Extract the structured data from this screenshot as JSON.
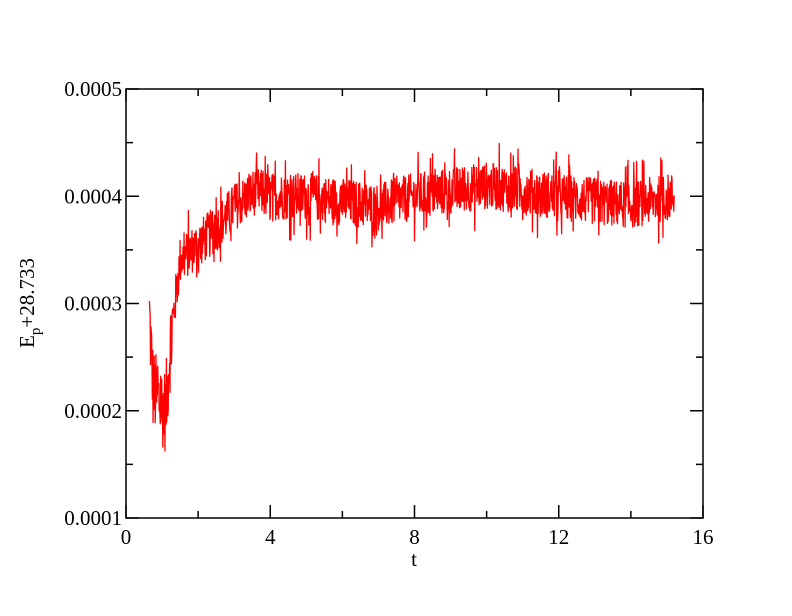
{
  "chart_data": {
    "type": "line",
    "title": "",
    "xlabel": "t",
    "ylabel_main": "E",
    "ylabel_sub": "p",
    "ylabel_suffix": "+28.733",
    "xlim": [
      0,
      16
    ],
    "ylim": [
      0.0001,
      0.0005
    ],
    "x_ticks": [
      {
        "value": 0,
        "label": "0"
      },
      {
        "value": 4,
        "label": "4"
      },
      {
        "value": 8,
        "label": "8"
      },
      {
        "value": 12,
        "label": "12"
      },
      {
        "value": 16,
        "label": "16"
      }
    ],
    "y_ticks": [
      {
        "value": 0.0001,
        "label": "0.0001"
      },
      {
        "value": 0.0002,
        "label": "0.0002"
      },
      {
        "value": 0.0003,
        "label": "0.0003"
      },
      {
        "value": 0.0004,
        "label": "0.0004"
      },
      {
        "value": 0.0005,
        "label": "0.0005"
      }
    ],
    "grid": false,
    "legend": "none",
    "series": [
      {
        "color": "#ff0000",
        "x_start": 0.65,
        "x_end": 15.2,
        "x_step": 0.01,
        "trend": [
          [
            0.65,
            0.00029
          ],
          [
            0.75,
            0.00022
          ],
          [
            0.9,
            0.00021
          ],
          [
            1.1,
            0.0002
          ],
          [
            1.25,
            0.00027
          ],
          [
            1.5,
            0.00034
          ],
          [
            2.0,
            0.000355
          ],
          [
            2.5,
            0.00037
          ],
          [
            3.0,
            0.00039
          ],
          [
            3.6,
            0.000405
          ],
          [
            4.0,
            0.0004
          ],
          [
            5.0,
            0.0004
          ],
          [
            6.0,
            0.000395
          ],
          [
            7.0,
            0.00039
          ],
          [
            8.0,
            0.0004
          ],
          [
            9.0,
            0.000405
          ],
          [
            10.0,
            0.00041
          ],
          [
            11.0,
            0.000405
          ],
          [
            12.0,
            0.0004
          ],
          [
            13.0,
            0.000395
          ],
          [
            14.0,
            0.000392
          ],
          [
            15.2,
            0.0004
          ]
        ],
        "noise_amplitude": 2.2e-05,
        "y_min": 0.000142,
        "y_max": 0.000462
      }
    ]
  }
}
